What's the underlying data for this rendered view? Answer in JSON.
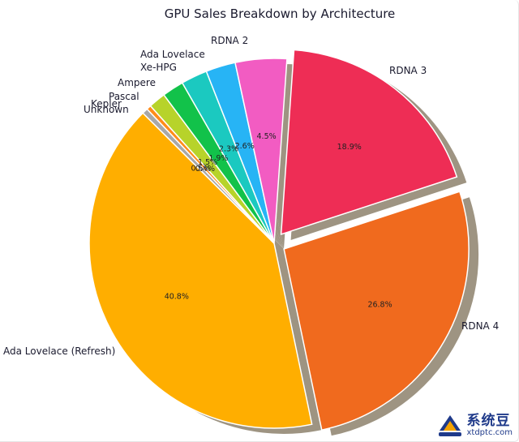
{
  "chart_data": {
    "type": "pie",
    "title": "GPU Sales Breakdown by Architecture",
    "slices": [
      {
        "label": "RDNA 3",
        "value": 18.9,
        "pct_text": "18.9%",
        "color": "#ee2d55",
        "explode": true
      },
      {
        "label": "RDNA 4",
        "value": 26.8,
        "pct_text": "26.8%",
        "color": "#f06a1e",
        "explode": true
      },
      {
        "label": "Ada Lovelace (Refresh)",
        "value": 40.8,
        "pct_text": "40.8%",
        "color": "#ffae00",
        "explode": false
      },
      {
        "label": "Unknown",
        "value": 0.5,
        "pct_text": "0.5%",
        "color": "#a8a8a8",
        "explode": false
      },
      {
        "label": "Kepler",
        "value": 0.4,
        "pct_text": "0.4%",
        "color": "#ff8c1a",
        "explode": false
      },
      {
        "label": "Pascal",
        "value": 1.5,
        "pct_text": "1.5%",
        "color": "#b7d32a",
        "explode": false
      },
      {
        "label": "Ampere",
        "value": 1.9,
        "pct_text": "1.9%",
        "color": "#12c24a",
        "explode": false
      },
      {
        "label": "Xe-HPG",
        "value": 2.3,
        "pct_text": "2.3%",
        "color": "#1bc9c0",
        "explode": false
      },
      {
        "label": "Ada Lovelace",
        "value": 2.6,
        "pct_text": "2.6%",
        "color": "#27b4f5",
        "explode": false
      },
      {
        "label": "RDNA 2",
        "value": 4.5,
        "pct_text": "4.5%",
        "color": "#f25cc2",
        "explode": false
      }
    ],
    "shadow": true,
    "legend": "none"
  },
  "watermark": {
    "main": "系统豆",
    "sub": "xtdptc.com"
  },
  "colors": {
    "shadow": "#9e9482",
    "edge": "#ffffff",
    "watermark_blue": "#1f3a8a",
    "watermark_orange": "#f5a300"
  }
}
